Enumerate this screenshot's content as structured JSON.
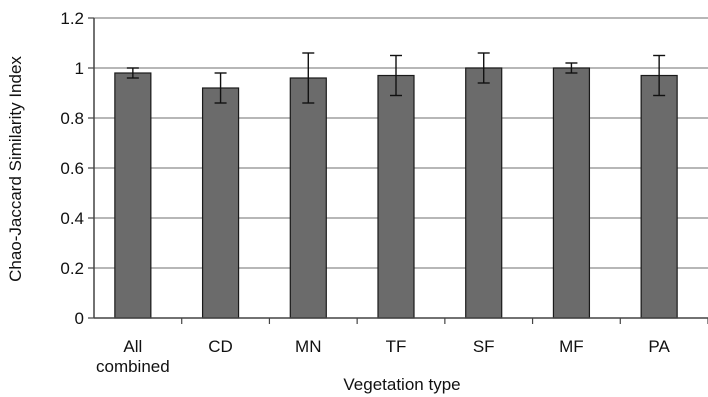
{
  "chart_data": {
    "type": "bar",
    "title": "",
    "xlabel": "Vegetation type",
    "ylabel": "Chao-Jaccard Similarity Index",
    "categories": [
      [
        "All",
        "combined"
      ],
      [
        "CD"
      ],
      [
        "MN"
      ],
      [
        "TF"
      ],
      [
        "SF"
      ],
      [
        "MF"
      ],
      [
        "PA"
      ]
    ],
    "values": [
      0.98,
      0.92,
      0.96,
      0.97,
      1.0,
      1.0,
      0.97
    ],
    "error_plus": [
      0.02,
      0.06,
      0.1,
      0.08,
      0.06,
      0.02,
      0.08
    ],
    "error_minus": [
      0.02,
      0.06,
      0.1,
      0.08,
      0.06,
      0.02,
      0.08
    ],
    "ylim": [
      0,
      1.2
    ],
    "yticks": [
      0,
      0.2,
      0.4,
      0.6,
      0.8,
      1,
      1.2
    ],
    "ytick_labels": [
      "0",
      "0.2",
      "0.4",
      "0.6",
      "0.8",
      "1",
      "1.2"
    ],
    "grid": true,
    "colors": {
      "bar_fill": "#6b6b6b",
      "bar_stroke": "#1a1a1a",
      "grid": "#8c8c8c",
      "axis": "#444444"
    }
  }
}
